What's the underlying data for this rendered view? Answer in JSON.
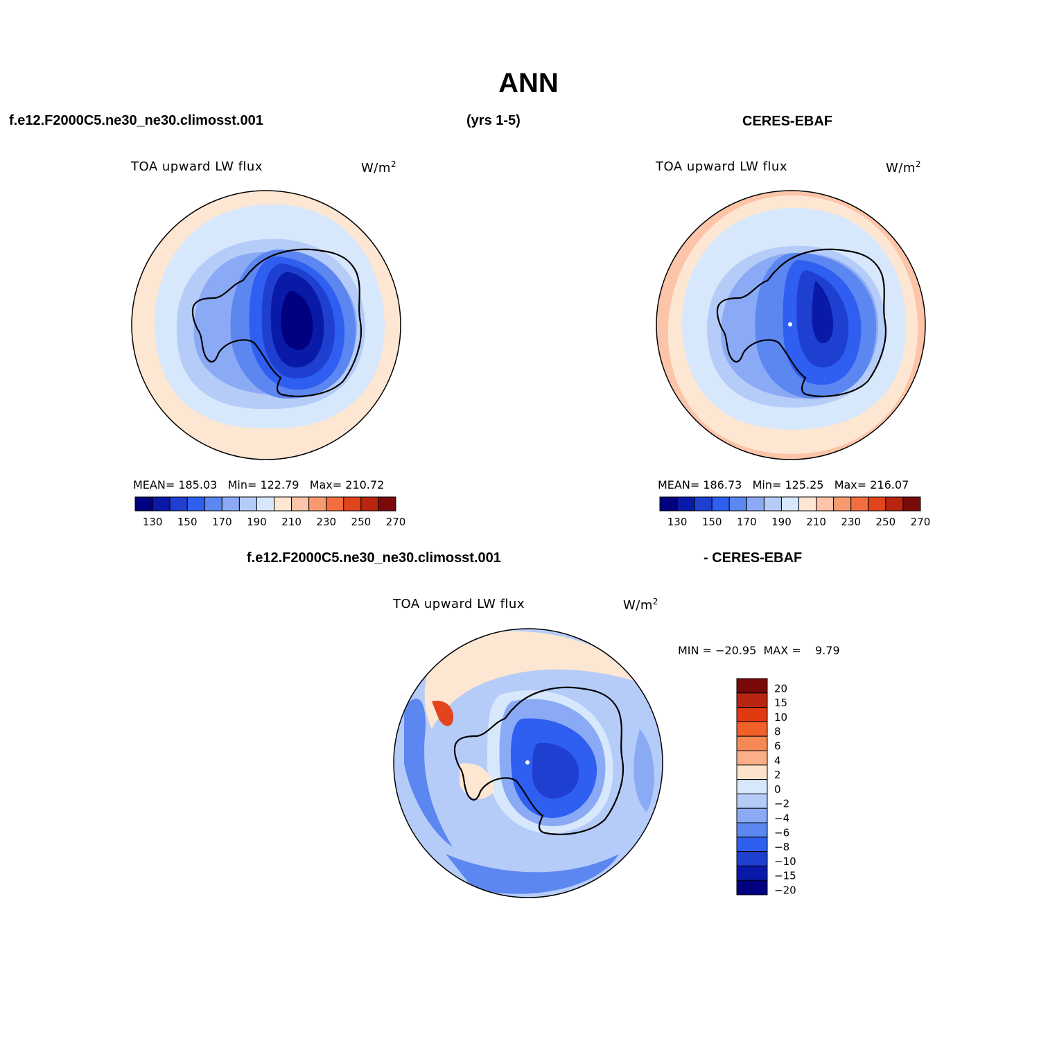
{
  "title": "ANN",
  "header": {
    "case_name": "f.e12.F2000C5.ne30_ne30.climosst.001",
    "years": "(yrs 1-5)",
    "obs_name": "CERES-EBAF"
  },
  "diff_header": {
    "case_name": "f.e12.F2000C5.ne30_ne30.climosst.001",
    "obs_name": "- CERES-EBAF"
  },
  "panels": {
    "model": {
      "variable": "TOA upward LW flux",
      "units": "W/m",
      "units_sup": "2",
      "stats": "MEAN= 185.03   Min= 122.79   Max= 210.72"
    },
    "obs": {
      "variable": "TOA upward LW flux",
      "units": "W/m",
      "units_sup": "2",
      "stats": "MEAN= 186.73   Min= 125.25   Max= 216.07"
    },
    "diff": {
      "variable": "TOA upward LW flux",
      "units": "W/m",
      "units_sup": "2",
      "stats": "MIN = −20.95  MAX =    9.79"
    }
  },
  "colorbar_abs": {
    "colors": [
      "#000080",
      "#0a1aa8",
      "#1f3fd0",
      "#2f5ff0",
      "#5c86f0",
      "#8aaaf5",
      "#b6ccf8",
      "#d8e8fc",
      "#fde6d2",
      "#fcc4a8",
      "#f89a70",
      "#f26e40",
      "#e2451b",
      "#b82510",
      "#7a0a0a"
    ],
    "tick_labels": [
      "130",
      "150",
      "170",
      "190",
      "210",
      "230",
      "250",
      "270"
    ]
  },
  "colorbar_diff": {
    "colors": [
      "#7a0a0a",
      "#b82510",
      "#e03a10",
      "#f2602a",
      "#f68a55",
      "#fbae88",
      "#fde2cc",
      "#d8e8fc",
      "#b6ccf8",
      "#8aaaf5",
      "#5c86f0",
      "#2f5ff0",
      "#1f3fd0",
      "#0a1aa8",
      "#000080"
    ],
    "tick_labels": [
      "20",
      "15",
      "10",
      "8",
      "6",
      "4",
      "2",
      "0",
      "−2",
      "−4",
      "−6",
      "−8",
      "−10",
      "−15",
      "−20"
    ]
  }
}
